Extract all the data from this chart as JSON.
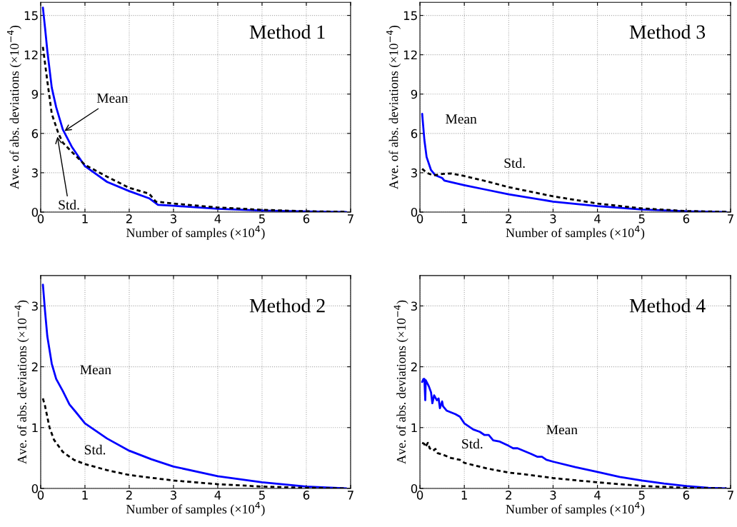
{
  "chart_data": [
    {
      "type": "line",
      "xlabel": "Number of samples (×10$^{4}$)",
      "ylabel": "Ave. of abs. deviations (×10$^{−4}$)",
      "xlim": [
        0,
        7
      ],
      "ylim": [
        0,
        16
      ],
      "xticks": [
        0,
        1,
        2,
        3,
        4,
        5,
        6,
        7
      ],
      "yticks": [
        0,
        3,
        6,
        9,
        12,
        15
      ],
      "grid": true,
      "annotations": [
        "Method 1",
        {
          "text": "Mean",
          "x": 0.5,
          "y": 6.1
        },
        {
          "text": "Std.",
          "x": 0.37,
          "y": 5.9
        }
      ],
      "series": [
        {
          "color": "#0000ff",
          "line_style": "solid",
          "x": [
            0.05,
            0.1,
            0.15,
            0.25,
            0.35,
            0.5,
            0.7,
            1.0,
            1.5,
            2.0,
            2.45,
            2.65,
            3,
            4,
            5,
            6,
            6.9
          ],
          "values": [
            15.6,
            14,
            12.3,
            9.5,
            8,
            6.3,
            5,
            3.5,
            2.3,
            1.6,
            1.05,
            0.55,
            0.48,
            0.25,
            0.12,
            0.04,
            0.01
          ]
        },
        {
          "color": "#000000",
          "line_style": "dashed",
          "x": [
            0.05,
            0.15,
            0.25,
            0.4,
            0.5,
            0.7,
            1.0,
            1.5,
            2,
            2.45,
            2.6,
            3,
            4,
            5,
            6,
            6.9
          ],
          "values": [
            12.6,
            10,
            7.5,
            6,
            5.3,
            4.6,
            3.6,
            2.7,
            1.85,
            1.4,
            0.8,
            0.65,
            0.35,
            0.17,
            0.06,
            0.02
          ]
        }
      ]
    },
    {
      "type": "line",
      "xlabel": "Number of samples (×10$^{4}$)",
      "ylabel": "Ave. of abs. deviations (×10$^{−4}$)",
      "xlim": [
        0,
        7
      ],
      "ylim": [
        0,
        16
      ],
      "xticks": [
        0,
        1,
        2,
        3,
        4,
        5,
        6,
        7
      ],
      "yticks": [
        0,
        3,
        6,
        9,
        12,
        15
      ],
      "grid": true,
      "annotations": [
        "Method 3",
        {
          "text": "Mean",
          "x": 0.1,
          "y": 5.5
        },
        {
          "text": "Std.",
          "x": 2,
          "y": 1.9
        }
      ],
      "series": [
        {
          "color": "#0000ff",
          "line_style": "solid",
          "x": [
            0.05,
            0.1,
            0.15,
            0.25,
            0.35,
            0.5,
            0.55,
            1,
            1.5,
            2,
            3,
            4,
            5,
            6,
            6.9
          ],
          "values": [
            7.5,
            5.5,
            4.2,
            3.2,
            2.8,
            2.6,
            2.4,
            2.05,
            1.7,
            1.35,
            0.8,
            0.45,
            0.2,
            0.06,
            0.01
          ]
        },
        {
          "color": "#000000",
          "line_style": "dashed",
          "x": [
            0.05,
            0.15,
            0.3,
            0.5,
            0.7,
            1,
            1.5,
            2,
            3,
            4,
            5,
            6,
            6.9
          ],
          "values": [
            3.3,
            3.0,
            2.8,
            2.9,
            2.95,
            2.75,
            2.35,
            1.9,
            1.2,
            0.65,
            0.28,
            0.08,
            0.02
          ]
        }
      ]
    },
    {
      "type": "line",
      "xlabel": "Number of samples (×10$^{4}$)",
      "ylabel": "Ave. of abs. deviations (×10$^{−4}$)",
      "xlim": [
        0,
        7
      ],
      "ylim": [
        0,
        3.5
      ],
      "xticks": [
        0,
        1,
        2,
        3,
        4,
        5,
        6,
        7
      ],
      "yticks": [
        0,
        1,
        2,
        3
      ],
      "grid": true,
      "annotations": [
        "Method 2",
        {
          "text": "Mean",
          "x": 0.3,
          "y": 1.85
        },
        {
          "text": "Std.",
          "x": 0.6,
          "y": 0.55
        }
      ],
      "series": [
        {
          "color": "#0000ff",
          "line_style": "solid",
          "x": [
            0.05,
            0.1,
            0.15,
            0.25,
            0.35,
            0.5,
            0.65,
            0.8,
            1.0,
            1.5,
            2,
            2.5,
            3,
            4,
            5,
            6,
            6.9
          ],
          "values": [
            3.35,
            2.9,
            2.5,
            2.05,
            1.8,
            1.6,
            1.38,
            1.25,
            1.07,
            0.82,
            0.62,
            0.48,
            0.36,
            0.2,
            0.1,
            0.03,
            0.0
          ]
        },
        {
          "color": "#000000",
          "line_style": "dashed",
          "x": [
            0.05,
            0.1,
            0.2,
            0.3,
            0.5,
            0.75,
            1,
            1.5,
            2,
            3,
            4,
            5,
            6,
            6.9
          ],
          "values": [
            1.48,
            1.35,
            1.0,
            0.8,
            0.6,
            0.47,
            0.4,
            0.3,
            0.22,
            0.13,
            0.07,
            0.03,
            0.01,
            0.0
          ]
        }
      ]
    },
    {
      "type": "line",
      "xlabel": "Number of samples (×10$^{4}$)",
      "ylabel": "Ave. of abs. deviations (×10$^{−4}$)",
      "xlim": [
        0,
        7
      ],
      "ylim": [
        0,
        3.5
      ],
      "xticks": [
        0,
        1,
        2,
        3,
        4,
        5,
        6,
        7
      ],
      "yticks": [
        0,
        1,
        2,
        3
      ],
      "grid": true,
      "annotations": [
        "Method 4",
        {
          "text": "Mean",
          "x": 3.2,
          "y": 0.44
        },
        {
          "text": "Std.",
          "x": 1.0,
          "y": 0.42
        }
      ],
      "series": [
        {
          "color": "#0000ff",
          "line_style": "solid",
          "x": [
            0.05,
            0.08,
            0.1,
            0.12,
            0.13,
            0.2,
            0.25,
            0.28,
            0.32,
            0.38,
            0.42,
            0.45,
            0.5,
            0.52,
            0.6,
            0.8,
            0.9,
            1.0,
            1.2,
            1.35,
            1.45,
            1.55,
            1.65,
            1.8,
            2.0,
            2.1,
            2.2,
            2.5,
            2.65,
            2.75,
            2.85,
            3.0,
            3.5,
            4,
            4.5,
            5,
            5.5,
            6,
            6.5,
            6.9
          ],
          "values": [
            1.75,
            1.8,
            1.8,
            1.45,
            1.78,
            1.68,
            1.58,
            1.4,
            1.53,
            1.45,
            1.48,
            1.32,
            1.43,
            1.35,
            1.28,
            1.22,
            1.18,
            1.07,
            0.97,
            0.93,
            0.88,
            0.88,
            0.79,
            0.77,
            0.7,
            0.66,
            0.66,
            0.57,
            0.52,
            0.52,
            0.47,
            0.44,
            0.35,
            0.27,
            0.19,
            0.13,
            0.08,
            0.04,
            0.01,
            0.0
          ]
        },
        {
          "color": "#000000",
          "line_style": "dashed",
          "x": [
            0.05,
            0.1,
            0.12,
            0.18,
            0.22,
            0.3,
            0.35,
            0.4,
            0.5,
            0.7,
            0.9,
            1.0,
            1.5,
            2,
            2.5,
            3,
            4,
            5,
            6,
            6.9
          ],
          "values": [
            0.75,
            0.73,
            0.68,
            0.75,
            0.66,
            0.62,
            0.65,
            0.58,
            0.56,
            0.5,
            0.47,
            0.42,
            0.33,
            0.26,
            0.22,
            0.17,
            0.1,
            0.04,
            0.01,
            0.0
          ]
        }
      ]
    }
  ]
}
